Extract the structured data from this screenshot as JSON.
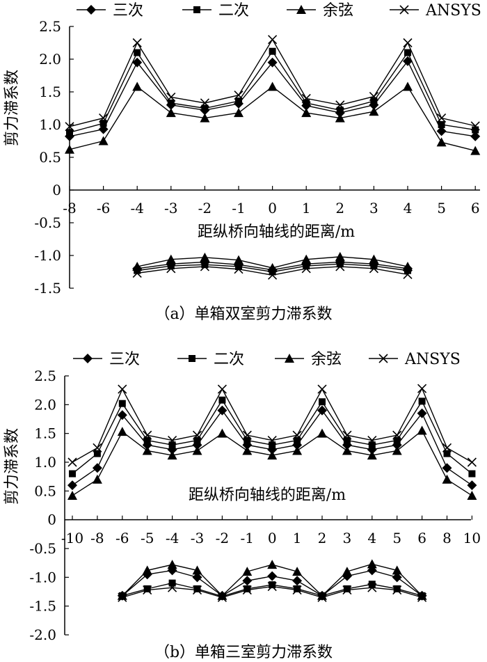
{
  "legend_labels": [
    "三次",
    "二次",
    "余弦",
    "ANSYS"
  ],
  "chart_data": [
    {
      "type": "line",
      "caption": "（a）单箱双室剪力滞系数",
      "ylabel": "剪力滞系数",
      "xlabel": "距纵桥向轴线的距离/m",
      "ylim": [
        -1.5,
        2.5
      ],
      "ytick_labels": [
        "2.5",
        "2.0",
        "1.5",
        "1.0",
        "0.5",
        "0",
        "-0.5",
        "-1.0",
        "-1.5"
      ],
      "yticks": [
        2.5,
        2.0,
        1.5,
        1.0,
        0.5,
        0,
        -0.5,
        -1.0,
        -1.5
      ],
      "x_categories": [
        "-8",
        "-6",
        "-4",
        "-3",
        "-2",
        "-1",
        "0",
        "1",
        "2",
        "3",
        "4",
        "5",
        "6"
      ],
      "legend_position": "top",
      "grid": false,
      "series": [
        {
          "name": "三次",
          "marker": "diamond",
          "values": [
            0.82,
            0.93,
            1.95,
            1.3,
            1.22,
            1.32,
            1.95,
            1.29,
            1.18,
            1.3,
            1.97,
            0.9,
            0.82
          ]
        },
        {
          "name": "二次",
          "marker": "square",
          "values": [
            0.88,
            1.02,
            2.1,
            1.33,
            1.25,
            1.36,
            2.12,
            1.33,
            1.22,
            1.36,
            2.1,
            1.0,
            0.92
          ]
        },
        {
          "name": "余弦",
          "marker": "triangle",
          "values": [
            0.62,
            0.75,
            1.58,
            1.18,
            1.1,
            1.18,
            1.58,
            1.18,
            1.1,
            1.2,
            1.58,
            0.73,
            0.6
          ]
        },
        {
          "name": "ANSYS",
          "marker": "x",
          "values": [
            0.97,
            1.1,
            2.25,
            1.42,
            1.33,
            1.45,
            2.3,
            1.4,
            1.3,
            1.43,
            2.25,
            1.1,
            0.98
          ]
        }
      ],
      "lower_x_categories": [
        "-4",
        "-3",
        "-2",
        "-1",
        "0",
        "1",
        "2",
        "3",
        "4"
      ],
      "lower_series": [
        {
          "name": "三次",
          "marker": "diamond",
          "values": [
            -1.2,
            -1.13,
            -1.1,
            -1.14,
            -1.22,
            -1.13,
            -1.1,
            -1.13,
            -1.2
          ]
        },
        {
          "name": "二次",
          "marker": "square",
          "values": [
            -1.23,
            -1.16,
            -1.14,
            -1.17,
            -1.25,
            -1.16,
            -1.13,
            -1.16,
            -1.23
          ]
        },
        {
          "name": "余弦",
          "marker": "triangle",
          "values": [
            -1.17,
            -1.06,
            -1.03,
            -1.07,
            -1.19,
            -1.06,
            -1.02,
            -1.06,
            -1.17
          ]
        },
        {
          "name": "ANSYS",
          "marker": "x",
          "values": [
            -1.27,
            -1.2,
            -1.17,
            -1.21,
            -1.3,
            -1.2,
            -1.17,
            -1.2,
            -1.29
          ]
        }
      ]
    },
    {
      "type": "line",
      "caption": "（b）单箱三室剪力滞系数",
      "ylabel": "剪力滞系数",
      "xlabel": "距纵桥向轴线的距离/m",
      "ylim": [
        -2.0,
        2.5
      ],
      "ytick_labels": [
        "2.5",
        "2.0",
        "1.5",
        "1.0",
        "0.5",
        "0",
        "-0.5",
        "-1.0",
        "-1.5",
        "-2.0"
      ],
      "yticks": [
        2.5,
        2.0,
        1.5,
        1.0,
        0.5,
        0,
        -0.5,
        -1.0,
        -1.5,
        -2.0
      ],
      "x_categories": [
        "-10",
        "-8",
        "-6",
        "-5",
        "-4",
        "-3",
        "-2",
        "-1",
        "0",
        "1",
        "2",
        "3",
        "4",
        "5",
        "6",
        "8",
        "10"
      ],
      "legend_position": "top",
      "grid": false,
      "series": [
        {
          "name": "三次",
          "marker": "diamond",
          "values": [
            0.6,
            0.9,
            1.82,
            1.3,
            1.22,
            1.3,
            1.9,
            1.3,
            1.22,
            1.3,
            1.9,
            1.3,
            1.22,
            1.3,
            1.85,
            0.9,
            0.6
          ]
        },
        {
          "name": "二次",
          "marker": "square",
          "values": [
            0.8,
            1.15,
            2.02,
            1.38,
            1.3,
            1.38,
            2.08,
            1.38,
            1.3,
            1.38,
            2.05,
            1.38,
            1.3,
            1.38,
            2.06,
            1.15,
            0.8
          ]
        },
        {
          "name": "余弦",
          "marker": "triangle",
          "values": [
            0.42,
            0.7,
            1.53,
            1.2,
            1.12,
            1.2,
            1.5,
            1.2,
            1.12,
            1.2,
            1.5,
            1.2,
            1.12,
            1.2,
            1.55,
            0.7,
            0.42
          ]
        },
        {
          "name": "ANSYS",
          "marker": "x",
          "values": [
            1.0,
            1.25,
            2.27,
            1.47,
            1.38,
            1.47,
            2.27,
            1.47,
            1.38,
            1.47,
            2.27,
            1.47,
            1.38,
            1.47,
            2.28,
            1.25,
            1.0
          ]
        }
      ],
      "lower_x_categories": [
        "-6",
        "-5",
        "-4",
        "-3",
        "-2",
        "-1",
        "0",
        "1",
        "2",
        "3",
        "4",
        "5",
        "6"
      ],
      "lower_series": [
        {
          "name": "三次",
          "marker": "diamond",
          "values": [
            -1.32,
            -0.95,
            -0.88,
            -1.0,
            -1.32,
            -1.06,
            -0.98,
            -1.06,
            -1.32,
            -0.98,
            -0.88,
            -1.0,
            -1.32
          ]
        },
        {
          "name": "二次",
          "marker": "square",
          "values": [
            -1.32,
            -1.2,
            -1.1,
            -1.2,
            -1.33,
            -1.2,
            -1.13,
            -1.2,
            -1.32,
            -1.2,
            -1.12,
            -1.2,
            -1.32
          ]
        },
        {
          "name": "余弦",
          "marker": "triangle",
          "values": [
            -1.32,
            -0.88,
            -0.78,
            -0.88,
            -1.32,
            -0.9,
            -0.78,
            -0.9,
            -1.32,
            -0.9,
            -0.77,
            -0.88,
            -1.32
          ]
        },
        {
          "name": "ANSYS",
          "marker": "x",
          "values": [
            -1.35,
            -1.22,
            -1.18,
            -1.22,
            -1.35,
            -1.22,
            -1.16,
            -1.22,
            -1.35,
            -1.22,
            -1.18,
            -1.22,
            -1.35
          ]
        }
      ]
    }
  ]
}
